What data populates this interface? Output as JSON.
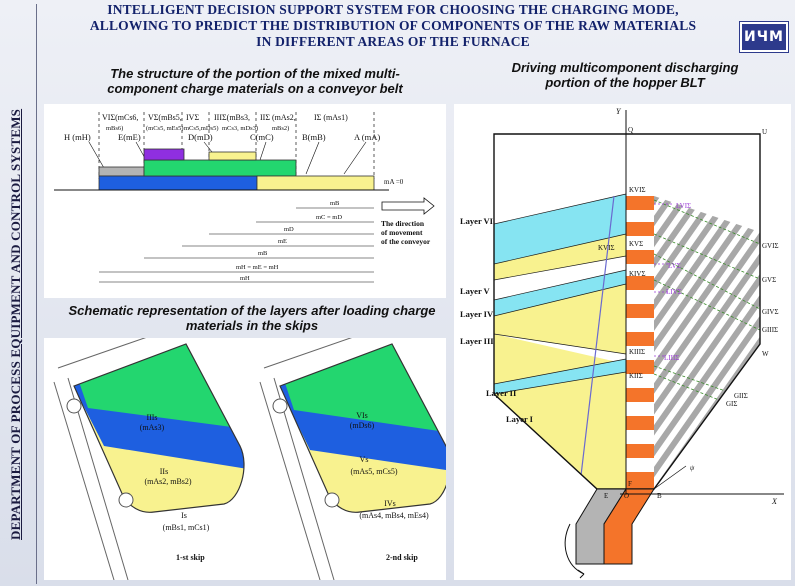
{
  "sidebar": {
    "department": "DEPARTMENT OF PROCESS EQUIPMENT AND CONTROL SYSTEMS"
  },
  "header": {
    "title_line1": "INTELLIGENT DECISION SUPPORT SYSTEM FOR CHOOSING THE CHARGING MODE,",
    "title_line2": "ALLOWING TO PREDICT THE DISTRIBUTION OF COMPONENTS OF THE RAW MATERIALS",
    "title_line3": "IN DIFFERENT AREAS OF THE FURNACE",
    "logo": "ИЧМ"
  },
  "captions": {
    "conveyor_line1": "The structure of the portion of the mixed multi-",
    "conveyor_line2": "component charge materials on a conveyor belt",
    "hopper_line1": "Driving multicomponent discharging",
    "hopper_line2": "portion of the hopper BLT",
    "skips_line1": "Schematic representation of the layers after loading charge",
    "skips_line2": "materials in the skips"
  },
  "conveyor": {
    "top_labels": {
      "vi": "VIΣ(mCs6,",
      "vi2": "mBs6)",
      "v": "VΣ(mBs5,",
      "v2": "(mCs5, mEs5)",
      "v3": "mCs5,mDs5)",
      "iv": "IVΣ",
      "iv2": "(mBs4,mCs4)",
      "iii": "IIIΣ(mBs3,",
      "iii2": "mCs3, mDs3)",
      "ii": "IIΣ (mAs2,",
      "ii2": "mBs2)",
      "i": "IΣ (mAs1)"
    },
    "components": {
      "h": "H (mH)",
      "e": "E(mE)",
      "d": "D(mD)",
      "c": "C(mC)",
      "b": "B(mB)",
      "a": "A (mA)"
    },
    "dims": {
      "mA0": "mA =0",
      "mB": "mB",
      "mCD": "mC = mD",
      "mD": "mD",
      "mE": "mE",
      "mB2": "mB",
      "mHEsum": "mH = mE = mH",
      "mH": "mH"
    },
    "direction": {
      "l1": "The direction",
      "l2": "of movement",
      "l3": "of the conveyor"
    }
  },
  "skips": {
    "skip1": {
      "caption": "1-st skip",
      "l3": "IIIs",
      "l3m": "(mAs3)",
      "l2": "IIs",
      "l2m": "(mAs2, mBs2)",
      "l1": "Is",
      "l1m": "(mBs1, mCs1)"
    },
    "skip2": {
      "caption": "2-nd skip",
      "l6": "VIs",
      "l6m": "(mDs6)",
      "l5": "Vs",
      "l5m": "(mAs5, mCs5)",
      "l4": "IVs",
      "l4m": "(mAs4, mBs4, mEs4)"
    }
  },
  "hopper": {
    "axis_y": "Y",
    "axis_x": "X",
    "layers": [
      "Layer VI",
      "Layer V",
      "Layer IV",
      "Layer III",
      "Layer II",
      "Layer I"
    ],
    "points": {
      "q": "Q",
      "u": "U",
      "w": "W",
      "e": "E",
      "o": "O",
      "b": "B",
      "f": "F",
      "psi": "ψ",
      "kvi": "KVIΣ",
      "kvir": "KVIΣ",
      "kv": "KVΣ",
      "kiv": "KIVΣ",
      "kiii": "KIIIΣ",
      "kii": "KIIΣ",
      "lvi": "LVIΣ",
      "lv": "LVΣ",
      "liv": "LIVΣ",
      "liii": "LIIIΣ",
      "gvi": "GVIΣ",
      "gv": "GVΣ",
      "giv": "GIVΣ",
      "giii": "GIIIΣ",
      "gii": "GIIΣ",
      "gi": "GIΣ"
    }
  },
  "colors": {
    "yellow": "#f8f28f",
    "green": "#23d66f",
    "blue": "#1e5fe0",
    "purple": "#8f2fe0",
    "gray": "#b4b4b4",
    "cyan": "#86e4f2",
    "orange": "#f4742a",
    "title": "#13226b"
  }
}
